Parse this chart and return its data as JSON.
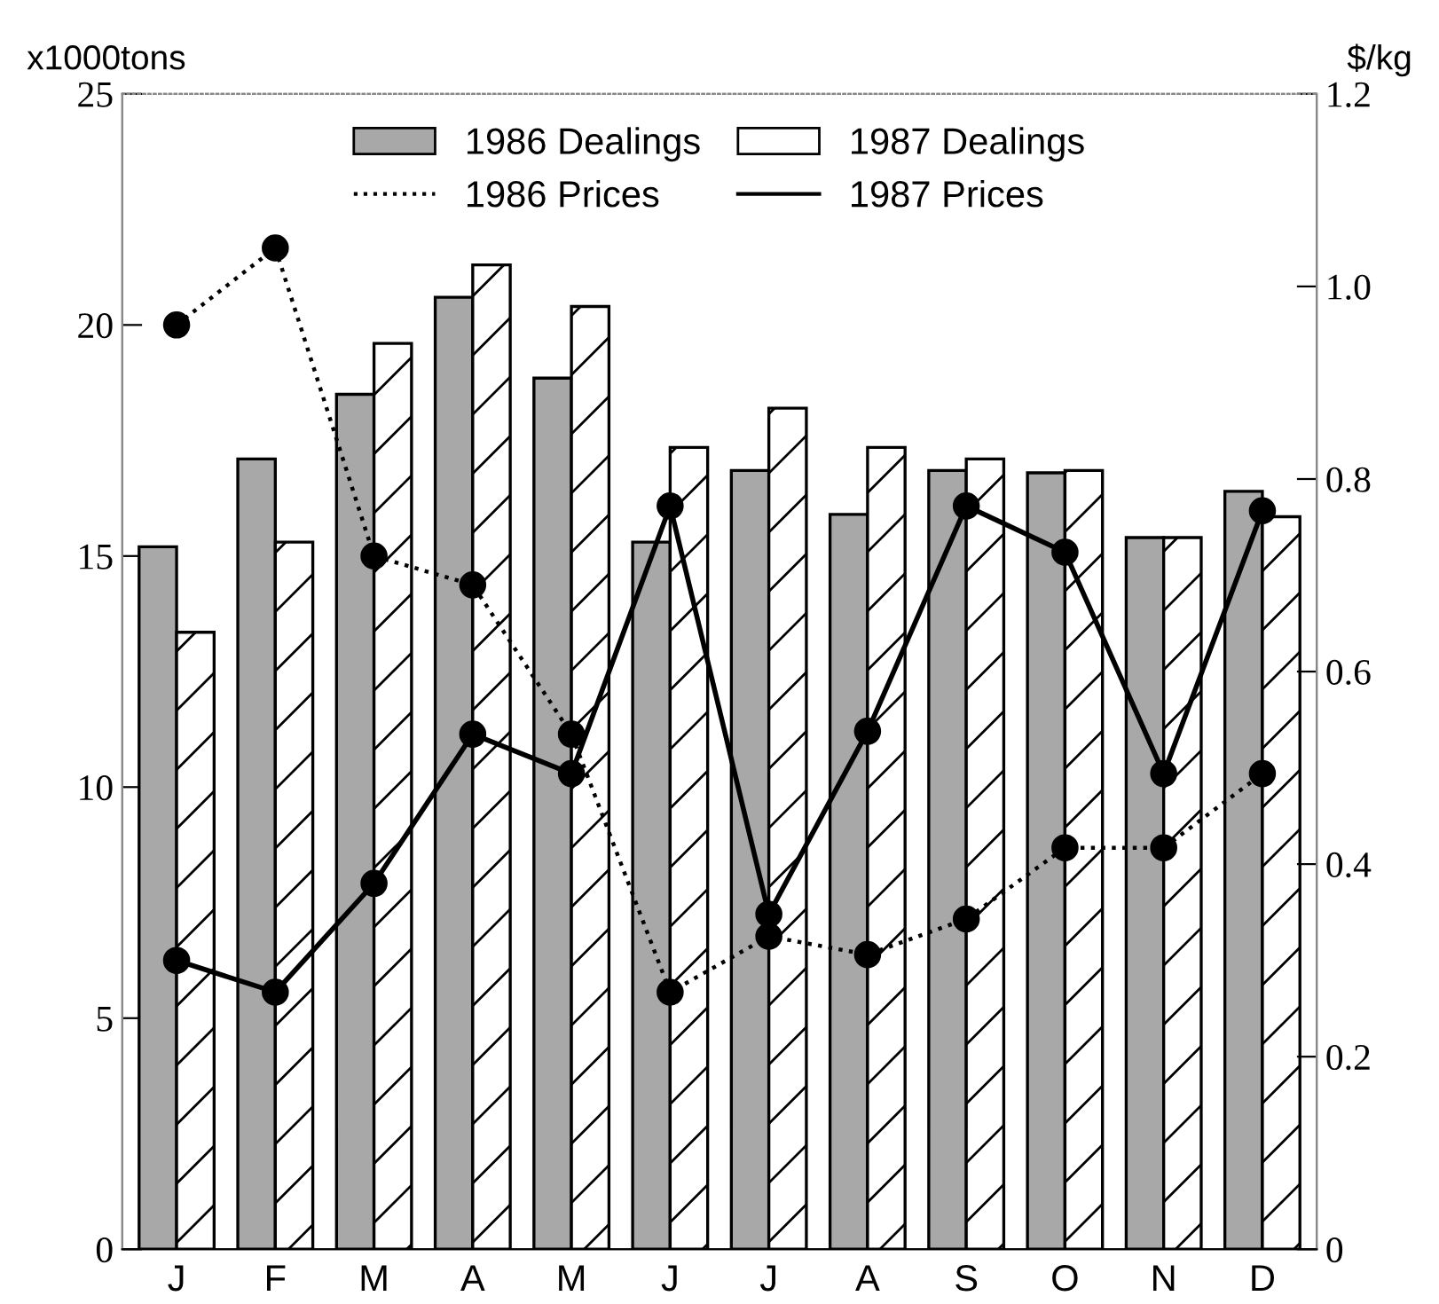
{
  "chart_data": {
    "type": "bar",
    "ylabel": "x1000tons",
    "y2label": "$/kg",
    "categories": [
      "J",
      "F",
      "M",
      "A",
      "M",
      "J",
      "J",
      "A",
      "S",
      "O",
      "N",
      "D"
    ],
    "series": [
      {
        "name": "1986 Dealings",
        "color": "#a8a8a8",
        "values": [
          15.2,
          17.1,
          18.5,
          20.6,
          18.85,
          15.3,
          16.85,
          15.9,
          16.85,
          16.8,
          15.4,
          16.4
        ]
      },
      {
        "name": "1987 Dealings",
        "color": "#ffffff",
        "values": [
          13.35,
          15.3,
          19.6,
          21.3,
          20.4,
          17.35,
          18.2,
          17.35,
          17.1,
          16.85,
          15.4,
          15.85
        ]
      },
      {
        "name": "1986 Prices",
        "type": "line",
        "axis": "y2",
        "color": "#000000",
        "line_style": "dotted",
        "marker": "circle",
        "values": [
          0.96,
          1.04,
          0.72,
          0.69,
          0.535,
          0.267,
          0.325,
          0.306,
          0.343,
          0.417,
          0.417,
          0.494
        ]
      },
      {
        "name": "1987 Prices",
        "type": "line",
        "axis": "y2",
        "color": "#000000",
        "line_style": "solid",
        "marker": "circle",
        "values": [
          0.3,
          0.267,
          0.38,
          0.535,
          0.494,
          0.772,
          0.348,
          0.538,
          0.772,
          0.724,
          0.494,
          0.767
        ]
      }
    ],
    "ylim": [
      0,
      25
    ],
    "yticks": [
      0,
      5,
      10,
      15,
      20,
      25
    ],
    "y2lim": [
      0,
      1.2
    ],
    "y2ticks": [
      0,
      0.2,
      0.4,
      0.6,
      0.8,
      {
        "value": 1,
        "label": "1.0"
      },
      1.2
    ],
    "legend": "top",
    "grid": false
  }
}
